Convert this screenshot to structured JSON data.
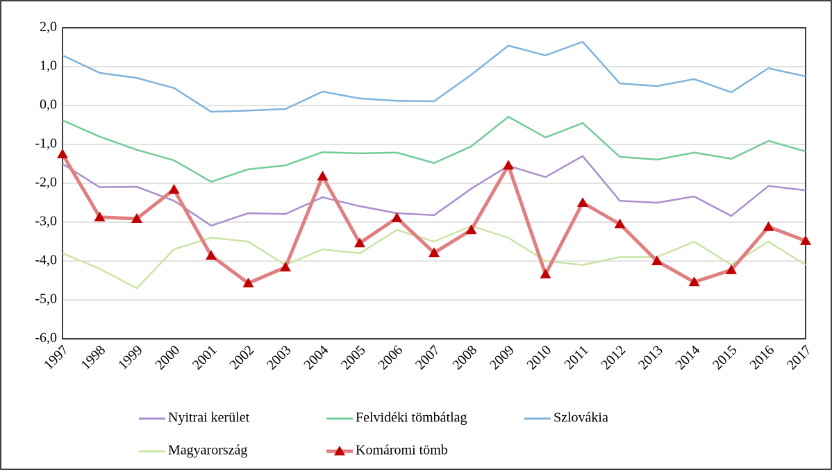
{
  "chart_data": {
    "type": "line",
    "categories": [
      "1997",
      "1998",
      "1999",
      "2000",
      "2001",
      "2002",
      "2003",
      "2004",
      "2005",
      "2006",
      "2007",
      "2008",
      "2009",
      "2010",
      "2011",
      "2012",
      "2013",
      "2014",
      "2015",
      "2016",
      "2017"
    ],
    "ylim": [
      -6,
      2
    ],
    "yticks": [
      {
        "value": 2,
        "label": "2,0"
      },
      {
        "value": 1,
        "label": "1,0"
      },
      {
        "value": 0,
        "label": "0,0"
      },
      {
        "value": -1,
        "label": "-1,0"
      },
      {
        "value": -2,
        "label": "-2,0"
      },
      {
        "value": -3,
        "label": "-3,0"
      },
      {
        "value": -4,
        "label": "-4,0"
      },
      {
        "value": -5,
        "label": "-5,0"
      },
      {
        "value": -6,
        "label": "-6,0"
      }
    ],
    "grid": true,
    "legend": "bottom",
    "series": [
      {
        "name": "Nyitrai kerület",
        "color": "#a98fcc",
        "values": [
          -1.5,
          -2.1,
          -2.09,
          -2.45,
          -3.09,
          -2.77,
          -2.79,
          -2.36,
          -2.59,
          -2.77,
          -2.82,
          -2.14,
          -1.55,
          -1.84,
          -1.3,
          -2.45,
          -2.5,
          -2.34,
          -2.84,
          -2.07,
          -2.18
        ]
      },
      {
        "name": "Felvidéki tömbátlag",
        "color": "#72cc98",
        "values": [
          -0.38,
          -0.8,
          -1.14,
          -1.41,
          -1.96,
          -1.64,
          -1.54,
          -1.2,
          -1.23,
          -1.21,
          -1.48,
          -1.05,
          -0.29,
          -0.82,
          -0.45,
          -1.32,
          -1.39,
          -1.21,
          -1.37,
          -0.91,
          -1.18
        ]
      },
      {
        "name": "Szlovákia",
        "color": "#7fb3dd",
        "values": [
          1.29,
          0.84,
          0.71,
          0.45,
          -0.16,
          -0.13,
          -0.09,
          0.36,
          0.18,
          0.12,
          0.11,
          0.79,
          1.54,
          1.29,
          1.64,
          0.57,
          0.5,
          0.68,
          0.34,
          0.96,
          0.75
        ]
      },
      {
        "name": "Magyarország",
        "color": "#cae4a5",
        "values": [
          -3.8,
          -4.2,
          -4.7,
          -3.7,
          -3.4,
          -3.5,
          -4.1,
          -3.7,
          -3.8,
          -3.2,
          -3.5,
          -3.1,
          -3.4,
          -4.0,
          -4.1,
          -3.9,
          -3.9,
          -3.5,
          -4.1,
          -3.5,
          -4.1
        ]
      },
      {
        "name": "Komáromi tömb",
        "color": "#e07f7f",
        "marker": "triangle",
        "marker_color": "#c00000",
        "values": [
          -1.25,
          -2.87,
          -2.91,
          -2.16,
          -3.86,
          -4.57,
          -4.16,
          -1.82,
          -3.54,
          -2.89,
          -3.79,
          -3.2,
          -1.54,
          -4.34,
          -2.5,
          -3.05,
          -4.0,
          -4.54,
          -4.23,
          -3.12,
          -3.48
        ]
      }
    ]
  }
}
